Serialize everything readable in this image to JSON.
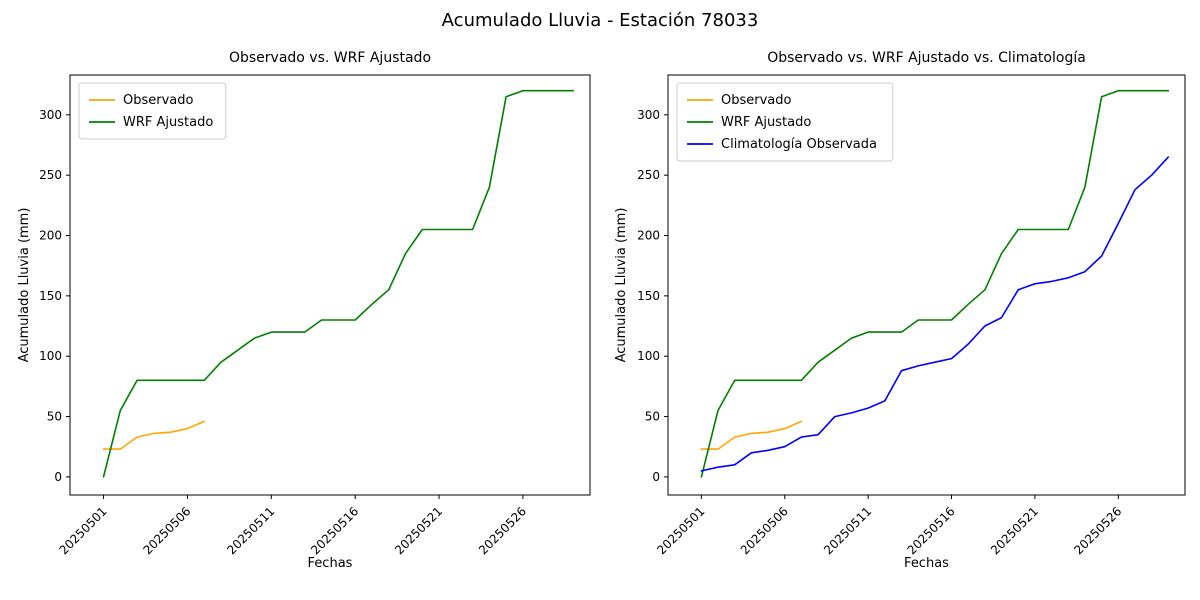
{
  "figure": {
    "title": "Acumulado Lluvia - Estación 78033",
    "background": "#ffffff"
  },
  "chart_data": [
    {
      "type": "line",
      "title": "Observado vs. WRF Ajustado",
      "xlabel": "Fechas",
      "ylabel": "Acumulado Lluvia (mm)",
      "x_tick_labels": [
        "20250501",
        "20250506",
        "20250511",
        "20250516",
        "20250521",
        "20250526"
      ],
      "x_tick_days": [
        1,
        6,
        11,
        16,
        21,
        26
      ],
      "y_ticks": [
        0,
        50,
        100,
        150,
        200,
        250,
        300
      ],
      "xlim": [
        -1,
        30
      ],
      "ylim": [
        -15,
        333
      ],
      "grid": false,
      "legend_position": "upper-left",
      "series": [
        {
          "name": "Observado",
          "color": "#ffa500",
          "x": [
            1,
            2,
            3,
            4,
            5,
            6,
            7
          ],
          "values": [
            23,
            23,
            33,
            36,
            37,
            40,
            46
          ]
        },
        {
          "name": "WRF Ajustado",
          "color": "#008000",
          "x": [
            1,
            2,
            3,
            4,
            5,
            6,
            7,
            8,
            9,
            10,
            11,
            12,
            13,
            14,
            15,
            16,
            17,
            18,
            19,
            20,
            21,
            22,
            23,
            24,
            25,
            26,
            27,
            28,
            29
          ],
          "values": [
            0,
            55,
            80,
            80,
            80,
            80,
            80,
            95,
            105,
            115,
            120,
            120,
            120,
            130,
            130,
            130,
            143,
            155,
            185,
            205,
            205,
            205,
            205,
            240,
            315,
            320,
            320,
            320,
            320
          ]
        }
      ]
    },
    {
      "type": "line",
      "title": "Observado vs. WRF Ajustado vs. Climatología",
      "xlabel": "Fechas",
      "ylabel": "Acumulado Lluvia (mm)",
      "x_tick_labels": [
        "20250501",
        "20250506",
        "20250511",
        "20250516",
        "20250521",
        "20250526"
      ],
      "x_tick_days": [
        1,
        6,
        11,
        16,
        21,
        26
      ],
      "y_ticks": [
        0,
        50,
        100,
        150,
        200,
        250,
        300
      ],
      "xlim": [
        -1,
        30
      ],
      "ylim": [
        -15,
        333
      ],
      "grid": false,
      "legend_position": "upper-left",
      "series": [
        {
          "name": "Observado",
          "color": "#ffa500",
          "x": [
            1,
            2,
            3,
            4,
            5,
            6,
            7
          ],
          "values": [
            23,
            23,
            33,
            36,
            37,
            40,
            46
          ]
        },
        {
          "name": "WRF Ajustado",
          "color": "#008000",
          "x": [
            1,
            2,
            3,
            4,
            5,
            6,
            7,
            8,
            9,
            10,
            11,
            12,
            13,
            14,
            15,
            16,
            17,
            18,
            19,
            20,
            21,
            22,
            23,
            24,
            25,
            26,
            27,
            28,
            29
          ],
          "values": [
            0,
            55,
            80,
            80,
            80,
            80,
            80,
            95,
            105,
            115,
            120,
            120,
            120,
            130,
            130,
            130,
            143,
            155,
            185,
            205,
            205,
            205,
            205,
            240,
            315,
            320,
            320,
            320,
            320
          ]
        },
        {
          "name": "Climatología Observada",
          "color": "#0000ff",
          "x": [
            1,
            2,
            3,
            4,
            5,
            6,
            7,
            8,
            9,
            10,
            11,
            12,
            13,
            14,
            15,
            16,
            17,
            18,
            19,
            20,
            21,
            22,
            23,
            24,
            25,
            26,
            27,
            28,
            29
          ],
          "values": [
            5,
            8,
            10,
            20,
            22,
            25,
            33,
            35,
            50,
            53,
            57,
            63,
            88,
            92,
            95,
            98,
            110,
            125,
            132,
            155,
            160,
            162,
            165,
            170,
            183,
            210,
            238,
            250,
            265
          ]
        }
      ]
    }
  ]
}
